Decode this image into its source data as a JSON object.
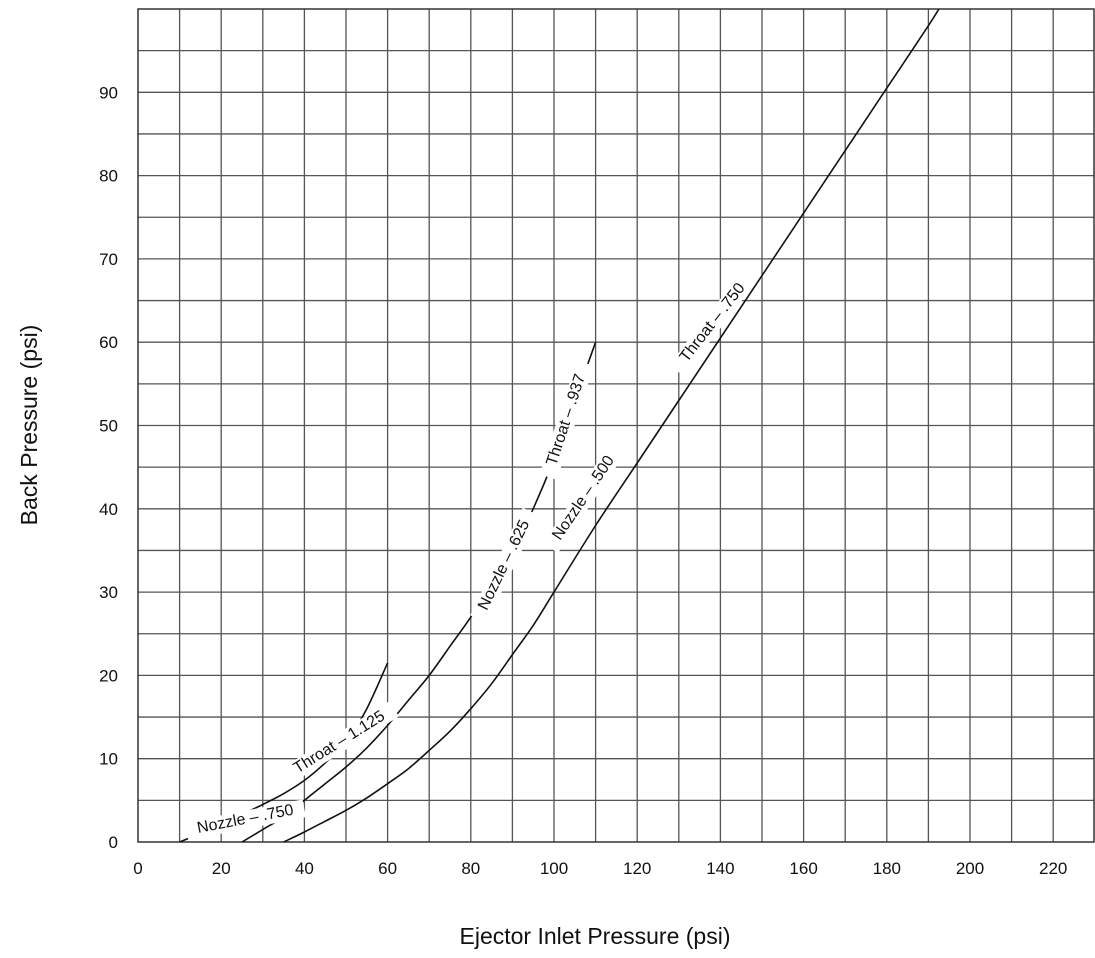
{
  "chart_data": {
    "type": "line",
    "title": "",
    "xlabel": "Ejector Inlet Pressure (psi)",
    "ylabel": "Back Pressure (psi)",
    "xlim": [
      0,
      230
    ],
    "ylim": [
      0,
      100
    ],
    "x_ticks": [
      0,
      20,
      40,
      60,
      80,
      100,
      120,
      140,
      160,
      180,
      200,
      220
    ],
    "y_ticks": [
      0,
      10,
      20,
      30,
      40,
      50,
      60,
      70,
      80,
      90
    ],
    "grid": true,
    "grid_x_step": 10,
    "grid_y_step": 5,
    "series": [
      {
        "label_parts": [
          "Nozzle – .750",
          "Throat – 1.125"
        ],
        "points": [
          [
            10,
            0
          ],
          [
            15,
            1
          ],
          [
            20,
            2
          ],
          [
            25,
            3.3
          ],
          [
            30,
            4.5
          ],
          [
            35,
            5.8
          ],
          [
            40,
            7.4
          ],
          [
            45,
            9.5
          ],
          [
            50,
            12
          ],
          [
            55,
            16
          ],
          [
            60,
            21.5
          ]
        ]
      },
      {
        "label_parts": [
          "Nozzle – .625",
          "Throat – .937"
        ],
        "points": [
          [
            25,
            0
          ],
          [
            30,
            1.5
          ],
          [
            35,
            3
          ],
          [
            40,
            5
          ],
          [
            45,
            7
          ],
          [
            50,
            9
          ],
          [
            55,
            11.3
          ],
          [
            60,
            14
          ],
          [
            65,
            17
          ],
          [
            70,
            20
          ],
          [
            75,
            23.5
          ],
          [
            80,
            27
          ],
          [
            85,
            31
          ],
          [
            90,
            35
          ],
          [
            95,
            40
          ],
          [
            100,
            46
          ],
          [
            105,
            53
          ],
          [
            110,
            60
          ]
        ]
      },
      {
        "label_parts": [
          "Nozzle – .500",
          "Throat – .750"
        ],
        "points": [
          [
            35,
            0
          ],
          [
            40,
            1.2
          ],
          [
            45,
            2.5
          ],
          [
            50,
            3.8
          ],
          [
            55,
            5.3
          ],
          [
            60,
            7
          ],
          [
            65,
            8.8
          ],
          [
            70,
            11
          ],
          [
            75,
            13.3
          ],
          [
            80,
            16
          ],
          [
            85,
            19
          ],
          [
            90,
            22.5
          ],
          [
            95,
            26
          ],
          [
            100,
            30
          ],
          [
            110,
            38
          ],
          [
            120,
            45.5
          ],
          [
            130,
            53
          ],
          [
            140,
            60.5
          ],
          [
            150,
            68
          ],
          [
            160,
            75.5
          ],
          [
            170,
            83
          ],
          [
            180,
            90.5
          ],
          [
            190,
            98
          ],
          [
            195,
            102
          ]
        ]
      }
    ]
  }
}
